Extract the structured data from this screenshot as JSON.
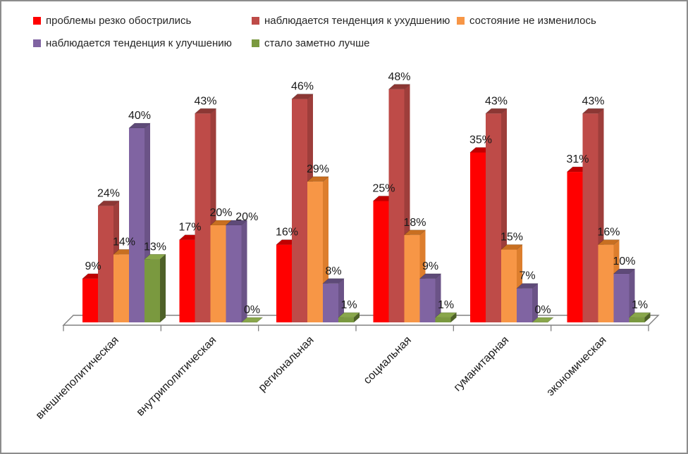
{
  "chart_data": {
    "type": "bar",
    "effect": "3d-clustered-column",
    "title": "",
    "xlabel": "",
    "ylabel": "",
    "value_suffix": "%",
    "ylim": [
      0,
      50
    ],
    "grid": false,
    "legend_position": "top-left",
    "categories": [
      "внешнеполитическая",
      "внутриполитическая",
      "региональная",
      "социальная",
      "гуманитарная",
      "экономическая"
    ],
    "series": [
      {
        "name": "проблемы резко обострились",
        "color": "#FF0000",
        "top_color": "#C00000",
        "side_color": "#A50000",
        "values": [
          9,
          17,
          16,
          25,
          35,
          31
        ]
      },
      {
        "name": "наблюдается тенденция к ухудшению",
        "color": "#BE4B48",
        "top_color": "#8C3734",
        "side_color": "#9E3E3B",
        "values": [
          24,
          43,
          46,
          48,
          43,
          43
        ]
      },
      {
        "name": "состояние не изменилось",
        "color": "#F79646",
        "top_color": "#C86F21",
        "side_color": "#DD7E2D",
        "values": [
          14,
          20,
          29,
          18,
          15,
          16
        ]
      },
      {
        "name": "наблюдается тенденция к улучшению",
        "color": "#8064A2",
        "top_color": "#5E4A78",
        "side_color": "#6B5387",
        "values": [
          40,
          20,
          8,
          9,
          7,
          10
        ]
      },
      {
        "name": "стало заметно лучше",
        "color": "#7A993F",
        "top_color": "#89A74B",
        "side_color": "#4E6128",
        "values": [
          13,
          0,
          1,
          1,
          0,
          1
        ]
      }
    ]
  },
  "frame": {
    "border_color": "#8C8C8C",
    "background": "#FFFFFF"
  },
  "plot": {
    "floor_stroke": "#808080",
    "text_color": "#1A1A1A"
  }
}
